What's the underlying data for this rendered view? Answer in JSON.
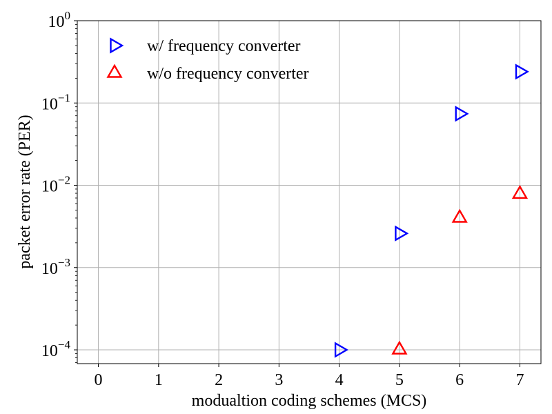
{
  "chart_data": {
    "type": "scatter",
    "xlabel": "modualtion coding schemes (MCS)",
    "ylabel": "packet error rate (PER)",
    "xlim": [
      -0.35,
      7.35
    ],
    "ylim": [
      6.8e-05,
      1
    ],
    "yscale": "log",
    "grid": true,
    "legend_position": "top-left",
    "x_ticks": [
      "0",
      "1",
      "2",
      "3",
      "4",
      "5",
      "6",
      "7"
    ],
    "y_ticks": [
      {
        "base": "10",
        "exp": "0",
        "value": 1
      },
      {
        "base": "10",
        "exp": "−1",
        "value": 0.1
      },
      {
        "base": "10",
        "exp": "−2",
        "value": 0.01
      },
      {
        "base": "10",
        "exp": "−3",
        "value": 0.001
      },
      {
        "base": "10",
        "exp": "−4",
        "value": 0.0001
      }
    ],
    "series": [
      {
        "name": "w/ frequency converter",
        "marker": "triangle-right",
        "color": "#0000ff",
        "points": [
          [
            4,
            0.0001
          ],
          [
            5,
            0.0026
          ],
          [
            6,
            0.074
          ],
          [
            7,
            0.24
          ]
        ]
      },
      {
        "name": "w/o frequency converter",
        "marker": "triangle-up",
        "color": "#ff0000",
        "points": [
          [
            5,
            0.0001
          ],
          [
            6,
            0.004
          ],
          [
            7,
            0.0078
          ]
        ]
      }
    ]
  }
}
